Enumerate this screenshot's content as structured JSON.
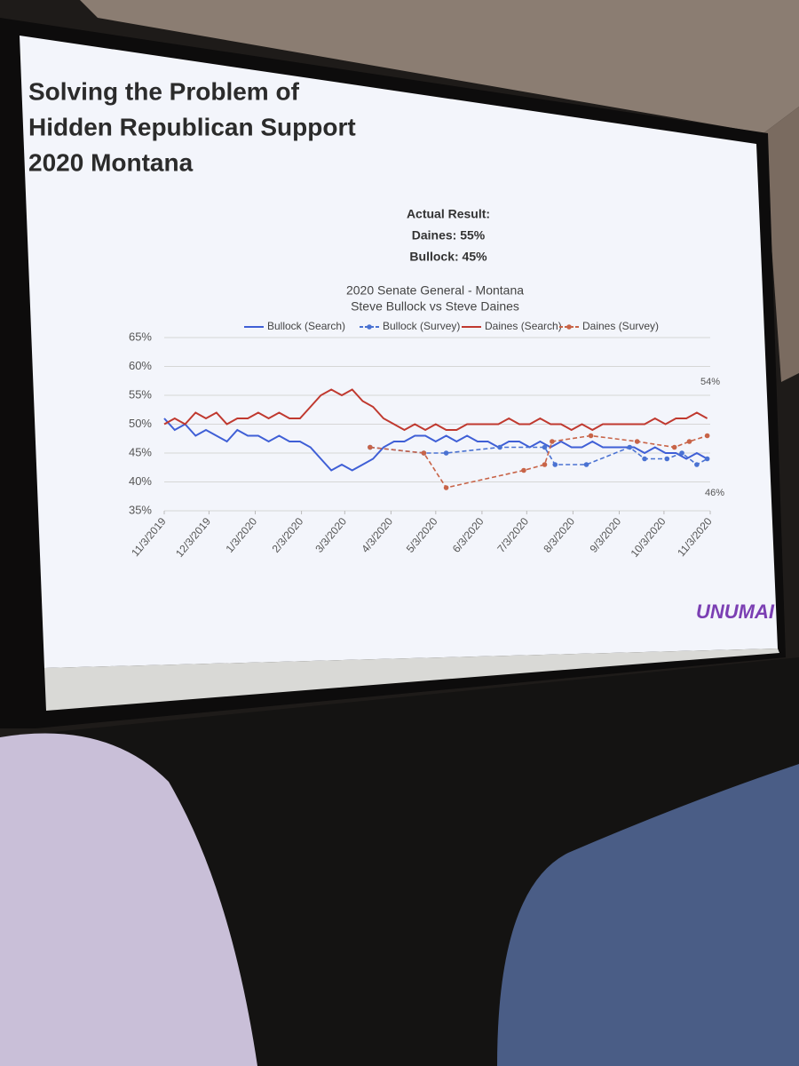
{
  "slide": {
    "title_lines": [
      "Solving the Problem of",
      "Hidden Republican Support",
      "2020 Montana"
    ],
    "result_lines": [
      "Actual Result:",
      "Daines: 55%",
      "Bullock: 45%"
    ],
    "logo": "UNUMAI"
  },
  "chart_data": {
    "type": "line",
    "title": "2020 Senate General - Montana",
    "subtitle": "Steve Bullock vs Steve Daines",
    "x": [
      "11/3/2019",
      "11/10/2019",
      "11/17/2019",
      "11/24/2019",
      "12/1/2019",
      "12/8/2019",
      "12/15/2019",
      "12/22/2019",
      "12/29/2019",
      "1/5/2020",
      "1/12/2020",
      "1/19/2020",
      "1/26/2020",
      "2/2/2020",
      "2/9/2020",
      "2/16/2020",
      "2/23/2020",
      "3/1/2020",
      "3/8/2020",
      "3/15/2020",
      "3/22/2020",
      "3/29/2020",
      "4/5/2020",
      "4/12/2020",
      "4/19/2020",
      "4/26/2020",
      "5/3/2020",
      "5/10/2020",
      "5/17/2020",
      "5/24/2020",
      "5/31/2020",
      "6/7/2020",
      "6/14/2020",
      "6/21/2020",
      "6/28/2020",
      "7/5/2020",
      "7/12/2020",
      "7/19/2020",
      "7/26/2020",
      "8/2/2020",
      "8/9/2020",
      "8/16/2020",
      "8/23/2020",
      "8/30/2020",
      "9/6/2020",
      "9/13/2020",
      "9/20/2020",
      "9/27/2020",
      "10/4/2020",
      "10/11/2020",
      "10/18/2020",
      "10/25/2020",
      "11/1/2020"
    ],
    "series": [
      {
        "name": "Bullock (Search)",
        "color": "#3f5fd6",
        "dashed": false,
        "markers": false,
        "values": [
          51,
          49,
          50,
          48,
          49,
          48,
          47,
          49,
          48,
          48,
          47,
          48,
          47,
          47,
          46,
          44,
          42,
          43,
          42,
          43,
          44,
          46,
          47,
          47,
          48,
          48,
          47,
          48,
          47,
          48,
          47,
          47,
          46,
          47,
          47,
          46,
          47,
          46,
          47,
          46,
          46,
          47,
          46,
          46,
          46,
          46,
          45,
          46,
          45,
          45,
          44,
          45,
          44
        ]
      },
      {
        "name": "Bullock (Survey)",
        "color": "#4a72d2",
        "dashed": true,
        "markers": true,
        "x": [
          "3/20/2020",
          "4/25/2020",
          "5/10/2020",
          "6/15/2020",
          "7/15/2020",
          "7/22/2020",
          "8/12/2020",
          "9/10/2020",
          "9/20/2020",
          "10/5/2020",
          "10/15/2020",
          "10/25/2020",
          "11/1/2020"
        ],
        "values": [
          46,
          45,
          45,
          46,
          46,
          43,
          43,
          46,
          44,
          44,
          45,
          43,
          44
        ]
      },
      {
        "name": "Daines (Search)",
        "color": "#c0392f",
        "dashed": false,
        "markers": false,
        "values": [
          50,
          51,
          50,
          52,
          51,
          52,
          50,
          51,
          51,
          52,
          51,
          52,
          51,
          51,
          53,
          55,
          56,
          55,
          56,
          54,
          53,
          51,
          50,
          49,
          50,
          49,
          50,
          49,
          49,
          50,
          50,
          50,
          50,
          51,
          50,
          50,
          51,
          50,
          50,
          49,
          50,
          49,
          50,
          50,
          50,
          50,
          50,
          51,
          50,
          51,
          51,
          52,
          51
        ]
      },
      {
        "name": "Daines (Survey)",
        "color": "#c86448",
        "dashed": true,
        "markers": true,
        "x": [
          "3/20/2020",
          "4/25/2020",
          "5/10/2020",
          "7/1/2020",
          "7/15/2020",
          "7/20/2020",
          "8/15/2020",
          "9/15/2020",
          "10/10/2020",
          "10/20/2020",
          "11/1/2020"
        ],
        "values": [
          46,
          45,
          39,
          42,
          43,
          47,
          48,
          47,
          46,
          47,
          48
        ]
      }
    ],
    "xlim": [
      "11/3/2019",
      "11/3/2020"
    ],
    "xticks": [
      "11/3/2019",
      "12/3/2019",
      "1/3/2020",
      "2/3/2020",
      "3/3/2020",
      "4/3/2020",
      "5/3/2020",
      "6/3/2020",
      "7/3/2020",
      "8/3/2020",
      "9/3/2020",
      "10/3/2020",
      "11/3/2020"
    ],
    "ylim": [
      35,
      65
    ],
    "yticks": [
      {
        "value": 35,
        "label": "35%"
      },
      {
        "value": 40,
        "label": "40%"
      },
      {
        "value": 45,
        "label": "45%"
      },
      {
        "value": 50,
        "label": "50%"
      },
      {
        "value": 55,
        "label": "55%"
      },
      {
        "value": 60,
        "label": "60%"
      },
      {
        "value": 65,
        "label": "65%"
      }
    ],
    "annotations": [
      "54%",
      "46%"
    ],
    "grid": true,
    "legend": "top"
  }
}
